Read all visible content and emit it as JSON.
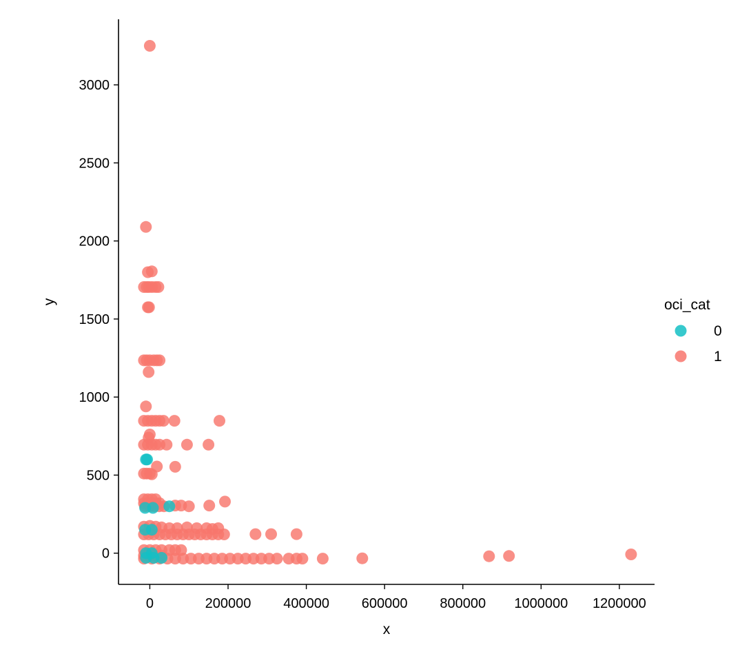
{
  "chart_data": {
    "type": "scatter",
    "title": "",
    "xlabel": "x",
    "ylabel": "y",
    "xlim": [
      -80000,
      1290000
    ],
    "ylim": [
      -200,
      3420
    ],
    "x_ticks": [
      0,
      200000,
      400000,
      600000,
      800000,
      1000000,
      1200000
    ],
    "y_ticks": [
      0,
      500,
      1000,
      1500,
      2000,
      2500,
      3000
    ],
    "grid": false,
    "legend": {
      "title": "oci_cat",
      "placement": "right",
      "entries": [
        {
          "label": "0",
          "color": "#14c0c4"
        },
        {
          "label": "1",
          "color": "#f8766d"
        }
      ]
    },
    "series": [
      {
        "name": "1",
        "color": "#f8766d",
        "points": [
          [
            0,
            3250
          ],
          [
            -10000,
            2090
          ],
          [
            -5000,
            1800
          ],
          [
            5000,
            1805
          ],
          [
            -15000,
            1705
          ],
          [
            -8000,
            1705
          ],
          [
            -2000,
            1705
          ],
          [
            6000,
            1705
          ],
          [
            15000,
            1705
          ],
          [
            22000,
            1705
          ],
          [
            -5000,
            1575
          ],
          [
            -2000,
            1575
          ],
          [
            -15000,
            1235
          ],
          [
            -8000,
            1235
          ],
          [
            0,
            1235
          ],
          [
            10000,
            1235
          ],
          [
            18000,
            1235
          ],
          [
            25000,
            1235
          ],
          [
            -3000,
            1160
          ],
          [
            -10000,
            940
          ],
          [
            -15000,
            848
          ],
          [
            -5000,
            848
          ],
          [
            5000,
            848
          ],
          [
            15000,
            848
          ],
          [
            25000,
            848
          ],
          [
            35000,
            848
          ],
          [
            63000,
            848
          ],
          [
            178000,
            848
          ],
          [
            0,
            760
          ],
          [
            -3000,
            740
          ],
          [
            -15000,
            695
          ],
          [
            -5000,
            695
          ],
          [
            5000,
            695
          ],
          [
            15000,
            695
          ],
          [
            25000,
            695
          ],
          [
            43000,
            695
          ],
          [
            95000,
            695
          ],
          [
            150000,
            695
          ],
          [
            18000,
            555
          ],
          [
            65000,
            553
          ],
          [
            -15000,
            510
          ],
          [
            -8000,
            510
          ],
          [
            0,
            510
          ],
          [
            5000,
            505
          ],
          [
            -15000,
            345
          ],
          [
            -5000,
            345
          ],
          [
            5000,
            345
          ],
          [
            15000,
            345
          ],
          [
            -15000,
            320
          ],
          [
            -5000,
            320
          ],
          [
            5000,
            320
          ],
          [
            15000,
            320
          ],
          [
            25000,
            320
          ],
          [
            -12000,
            300
          ],
          [
            0,
            300
          ],
          [
            12000,
            300
          ],
          [
            24000,
            300
          ],
          [
            36000,
            300
          ],
          [
            65000,
            305
          ],
          [
            80000,
            305
          ],
          [
            100000,
            300
          ],
          [
            152000,
            305
          ],
          [
            192000,
            330
          ],
          [
            -15000,
            170
          ],
          [
            0,
            175
          ],
          [
            15000,
            170
          ],
          [
            30000,
            165
          ],
          [
            50000,
            160
          ],
          [
            70000,
            160
          ],
          [
            95000,
            165
          ],
          [
            120000,
            160
          ],
          [
            145000,
            160
          ],
          [
            160000,
            155
          ],
          [
            175000,
            160
          ],
          [
            -15000,
            120
          ],
          [
            -3000,
            120
          ],
          [
            10000,
            120
          ],
          [
            25000,
            120
          ],
          [
            40000,
            120
          ],
          [
            55000,
            120
          ],
          [
            70000,
            120
          ],
          [
            85000,
            120
          ],
          [
            100000,
            120
          ],
          [
            115000,
            120
          ],
          [
            130000,
            120
          ],
          [
            145000,
            120
          ],
          [
            160000,
            120
          ],
          [
            175000,
            120
          ],
          [
            190000,
            120
          ],
          [
            270000,
            122
          ],
          [
            310000,
            122
          ],
          [
            375000,
            122
          ],
          [
            -15000,
            20
          ],
          [
            0,
            20
          ],
          [
            15000,
            20
          ],
          [
            30000,
            20
          ],
          [
            50000,
            20
          ],
          [
            65000,
            20
          ],
          [
            80000,
            20
          ],
          [
            -15000,
            -15
          ],
          [
            0,
            -15
          ],
          [
            15000,
            -15
          ],
          [
            30000,
            -15
          ],
          [
            -15000,
            -35
          ],
          [
            5000,
            -35
          ],
          [
            25000,
            -35
          ],
          [
            45000,
            -35
          ],
          [
            65000,
            -35
          ],
          [
            85000,
            -35
          ],
          [
            105000,
            -35
          ],
          [
            125000,
            -35
          ],
          [
            145000,
            -35
          ],
          [
            165000,
            -35
          ],
          [
            185000,
            -35
          ],
          [
            205000,
            -35
          ],
          [
            225000,
            -35
          ],
          [
            245000,
            -35
          ],
          [
            265000,
            -35
          ],
          [
            285000,
            -35
          ],
          [
            305000,
            -35
          ],
          [
            325000,
            -35
          ],
          [
            355000,
            -35
          ],
          [
            375000,
            -35
          ],
          [
            390000,
            -35
          ],
          [
            442000,
            -35
          ],
          [
            543000,
            -33
          ],
          [
            867000,
            -20
          ],
          [
            918000,
            -18
          ],
          [
            1230000,
            -8
          ]
        ]
      },
      {
        "name": "0",
        "color": "#14c0c4",
        "points": [
          [
            -10000,
            600
          ],
          [
            -7000,
            600
          ],
          [
            -12000,
            290
          ],
          [
            8000,
            290
          ],
          [
            50000,
            300
          ],
          [
            -12000,
            150
          ],
          [
            5000,
            150
          ],
          [
            -10000,
            0
          ],
          [
            5000,
            0
          ],
          [
            -10000,
            -30
          ],
          [
            10000,
            -30
          ],
          [
            30000,
            -30
          ]
        ]
      }
    ]
  }
}
